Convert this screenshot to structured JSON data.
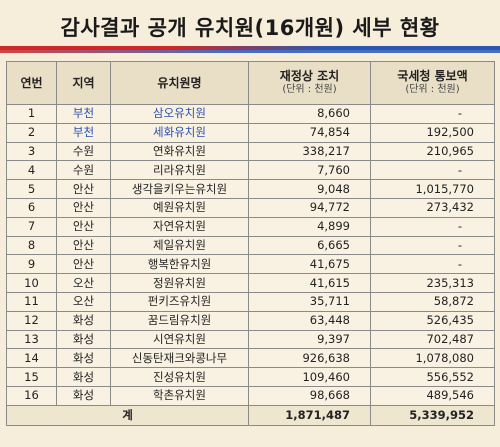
{
  "title": "감사결과 공개 유치원(16개원) 세부 현황",
  "headers": {
    "no": "연번",
    "region": "지역",
    "name": "유치원명",
    "correction": "재정상 조치",
    "correction_unit": "(단위 : 천원)",
    "tax": "국세청 통보액",
    "tax_unit": "(단위 : 천원)"
  },
  "rows": [
    {
      "no": "1",
      "region": "부천",
      "name": "삼오유치원",
      "correction": "8,660",
      "tax": "-"
    },
    {
      "no": "2",
      "region": "부천",
      "name": "세화유치원",
      "correction": "74,854",
      "tax": "192,500"
    },
    {
      "no": "3",
      "region": "수원",
      "name": "연화유치원",
      "correction": "338,217",
      "tax": "210,965"
    },
    {
      "no": "4",
      "region": "수원",
      "name": "리라유치원",
      "correction": "7,760",
      "tax": "-"
    },
    {
      "no": "5",
      "region": "안산",
      "name": "생각을키우는유치원",
      "correction": "9,048",
      "tax": "1,015,770"
    },
    {
      "no": "6",
      "region": "안산",
      "name": "예원유치원",
      "correction": "94,772",
      "tax": "273,432"
    },
    {
      "no": "7",
      "region": "안산",
      "name": "자연유치원",
      "correction": "4,899",
      "tax": "-"
    },
    {
      "no": "8",
      "region": "안산",
      "name": "제일유치원",
      "correction": "6,665",
      "tax": "-"
    },
    {
      "no": "9",
      "region": "안산",
      "name": "행복한유치원",
      "correction": "41,675",
      "tax": "-"
    },
    {
      "no": "10",
      "region": "오산",
      "name": "정원유치원",
      "correction": "41,615",
      "tax": "235,313"
    },
    {
      "no": "11",
      "region": "오산",
      "name": "펀키즈유치원",
      "correction": "35,711",
      "tax": "58,872"
    },
    {
      "no": "12",
      "region": "화성",
      "name": "꿈드림유치원",
      "correction": "63,448",
      "tax": "526,435"
    },
    {
      "no": "13",
      "region": "화성",
      "name": "시연유치원",
      "correction": "9,397",
      "tax": "702,487"
    },
    {
      "no": "14",
      "region": "화성",
      "name": "신동탄재크와콩나무",
      "correction": "926,638",
      "tax": "1,078,080"
    },
    {
      "no": "15",
      "region": "화성",
      "name": "진성유치원",
      "correction": "109,460",
      "tax": "556,552"
    },
    {
      "no": "16",
      "region": "화성",
      "name": "학촌유치원",
      "correction": "98,668",
      "tax": "489,546"
    }
  ],
  "total": {
    "label": "계",
    "correction": "1,871,487",
    "tax": "5,339,952"
  },
  "colors": {
    "highlight_text": "#2a4fb0",
    "bar_red": "#d02626",
    "bar_blue": "#2a56b4",
    "background": "#f6eedb"
  }
}
